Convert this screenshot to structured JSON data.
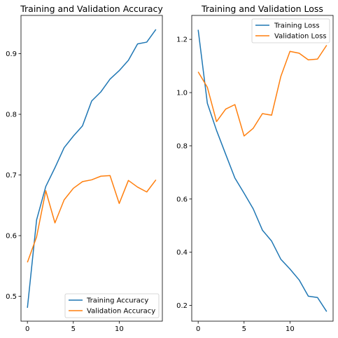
{
  "chart_data": [
    {
      "type": "line",
      "title": "Training and Validation Accuracy",
      "xlabel": "",
      "ylabel": "",
      "xlim": [
        -0.7,
        14.7
      ],
      "ylim": [
        0.459,
        0.963
      ],
      "x_ticks": [
        0,
        5,
        10
      ],
      "x_tick_labels": [
        "0",
        "5",
        "10"
      ],
      "y_ticks": [
        0.5,
        0.6,
        0.7,
        0.8,
        0.9
      ],
      "y_tick_labels": [
        "0.5",
        "0.6",
        "0.7",
        "0.8",
        "0.9"
      ],
      "grid": false,
      "legend_position": "lower-right",
      "x": [
        0,
        1,
        2,
        3,
        4,
        5,
        6,
        7,
        8,
        9,
        10,
        11,
        12,
        13,
        14
      ],
      "series": [
        {
          "name": "Training Accuracy",
          "color": "#1f77b4",
          "values": [
            0.481,
            0.626,
            0.681,
            0.712,
            0.745,
            0.764,
            0.781,
            0.822,
            0.837,
            0.858,
            0.872,
            0.889,
            0.916,
            0.919,
            0.94
          ]
        },
        {
          "name": "Validation Accuracy",
          "color": "#ff7f0e",
          "values": [
            0.556,
            0.598,
            0.674,
            0.621,
            0.659,
            0.678,
            0.689,
            0.692,
            0.698,
            0.699,
            0.653,
            0.691,
            0.68,
            0.672,
            0.692
          ]
        }
      ]
    },
    {
      "type": "line",
      "title": "Training and Validation Loss",
      "xlabel": "",
      "ylabel": "",
      "xlim": [
        -0.7,
        14.7
      ],
      "ylim": [
        0.141,
        1.29
      ],
      "x_ticks": [
        0,
        5,
        10
      ],
      "x_tick_labels": [
        "0",
        "5",
        "10"
      ],
      "y_ticks": [
        0.2,
        0.4,
        0.6,
        0.8,
        1.0,
        1.2
      ],
      "y_tick_labels": [
        "0.2",
        "0.4",
        "0.6",
        "0.8",
        "1.0",
        "1.2"
      ],
      "grid": false,
      "legend_position": "upper-right",
      "x": [
        0,
        1,
        2,
        3,
        4,
        5,
        6,
        7,
        8,
        9,
        10,
        11,
        12,
        13,
        14
      ],
      "series": [
        {
          "name": "Training Loss",
          "color": "#1f77b4",
          "values": [
            1.236,
            0.96,
            0.858,
            0.768,
            0.679,
            0.622,
            0.563,
            0.483,
            0.442,
            0.374,
            0.337,
            0.296,
            0.235,
            0.23,
            0.177
          ]
        },
        {
          "name": "Validation Loss",
          "color": "#ff7f0e",
          "values": [
            1.078,
            1.02,
            0.891,
            0.938,
            0.955,
            0.837,
            0.866,
            0.921,
            0.915,
            1.06,
            1.155,
            1.148,
            1.123,
            1.126,
            1.178
          ]
        }
      ]
    }
  ]
}
